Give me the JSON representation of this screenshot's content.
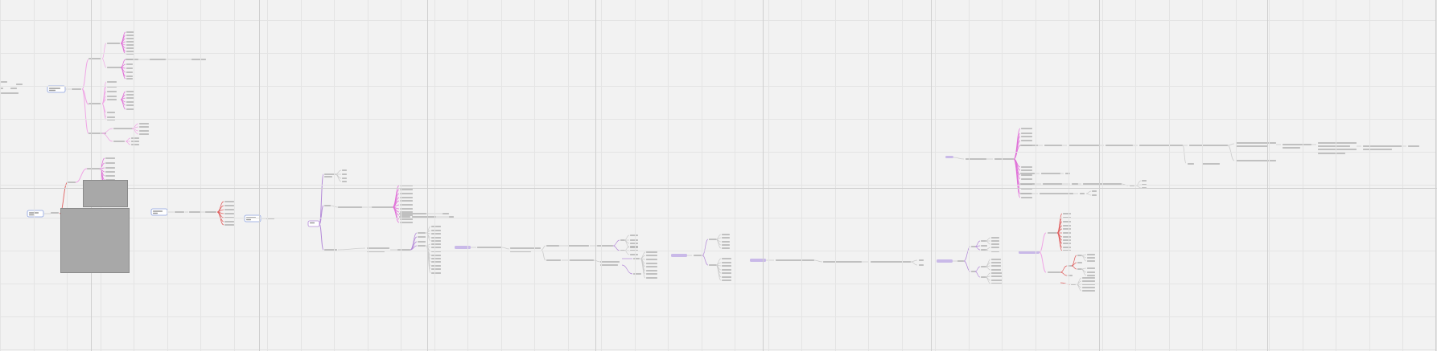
{
  "canvas": {
    "background": "#f2f2f2",
    "grid_color": "#e4e4e4",
    "grid_major_color": "#cfcfcf",
    "branch_colors": {
      "pink": "#f0a6e6",
      "magenta": "#e070d8",
      "red": "#e06060",
      "purple": "#b48ad8",
      "blue": "#8aa0e0"
    },
    "placeholder_text_color": "#bbbbbb"
  },
  "mindmaps": [
    {
      "name": "mindmap-top-left",
      "root_label": ""
    },
    {
      "name": "mindmap-left-lower",
      "root_label": ""
    },
    {
      "name": "mindmap-middle",
      "root_label": ""
    },
    {
      "name": "mindmap-right-upper",
      "root_label": ""
    },
    {
      "name": "mindmap-right-lower",
      "root_label": ""
    }
  ]
}
